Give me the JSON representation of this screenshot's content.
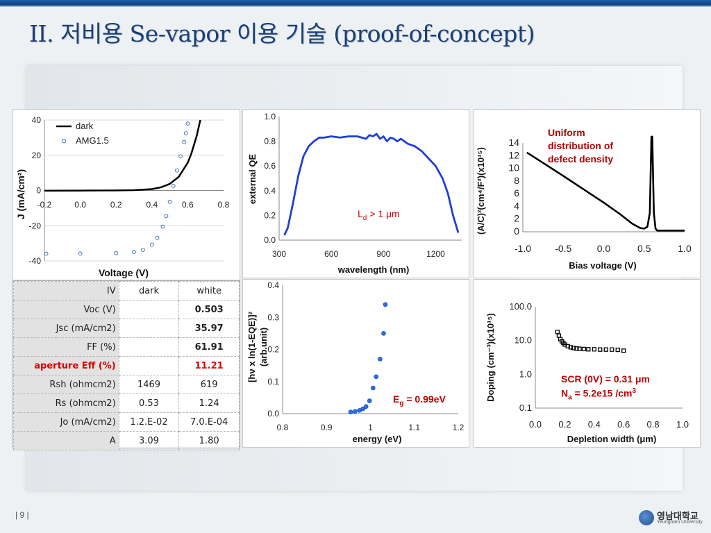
{
  "slide": {
    "title": "II. 저비용 Se-vapor 이용 기술 (proof-of-concept)",
    "page_number": "| 9 |",
    "logo_korean": "영남대학교",
    "logo_english": "Yeungnam University"
  },
  "chart_data": [
    {
      "id": "jv",
      "type": "line",
      "xlabel": "Voltage (V)",
      "ylabel": "J (mA/cm²)",
      "xlim": [
        -0.2,
        0.8
      ],
      "ylim": [
        -40,
        40
      ],
      "xticks": [
        "-0.2",
        "0.0",
        "0.2",
        "0.4",
        "0.6",
        "0.8"
      ],
      "yticks": [
        "40",
        "20",
        "0",
        "-20",
        "-40"
      ],
      "legend": "top-left",
      "series": [
        {
          "name": "dark",
          "style": "line",
          "color": "#000000",
          "x": [
            -0.2,
            0.0,
            0.2,
            0.3,
            0.4,
            0.45,
            0.5,
            0.55,
            0.6,
            0.62,
            0.65,
            0.67
          ],
          "y": [
            -0.1,
            -0.05,
            0.05,
            0.2,
            0.8,
            1.8,
            3.8,
            7.8,
            15.8,
            21,
            31,
            40
          ]
        },
        {
          "name": "AMG1.5",
          "style": "markers",
          "color": "#4a7fbd",
          "x": [
            -0.19,
            0.0,
            0.2,
            0.3,
            0.35,
            0.4,
            0.43,
            0.46,
            0.48,
            0.5,
            0.52,
            0.54,
            0.56,
            0.58,
            0.59,
            0.6
          ],
          "y": [
            -35.9,
            -35.8,
            -35.6,
            -34.9,
            -33.7,
            -30.7,
            -26.9,
            -20.5,
            -14.5,
            -6.4,
            2.6,
            11.4,
            19.4,
            27.5,
            32.5,
            38
          ]
        }
      ]
    },
    {
      "id": "eqe",
      "type": "line",
      "xlabel": "wavelength (nm)",
      "ylabel": "external QE",
      "xlim": [
        300,
        1350
      ],
      "ylim": [
        0,
        1.0
      ],
      "xticks": [
        "300",
        "600",
        "900",
        "1200"
      ],
      "yticks": [
        "1.0",
        "0.8",
        "0.6",
        "0.4",
        "0.2",
        "0.0"
      ],
      "annotation": {
        "main": "L",
        "sub": "d",
        "rest": " > 1 μm"
      },
      "series": [
        {
          "name": "",
          "color": "#1f3fd8",
          "x": [
            330,
            350,
            380,
            410,
            440,
            470,
            500,
            530,
            560,
            600,
            650,
            700,
            750,
            800,
            820,
            840,
            860,
            880,
            900,
            920,
            940,
            960,
            980,
            1000,
            1040,
            1080,
            1120,
            1160,
            1200,
            1240,
            1270,
            1300,
            1330
          ],
          "y": [
            0.04,
            0.1,
            0.3,
            0.52,
            0.68,
            0.76,
            0.8,
            0.83,
            0.83,
            0.84,
            0.83,
            0.84,
            0.84,
            0.82,
            0.85,
            0.84,
            0.86,
            0.82,
            0.84,
            0.8,
            0.83,
            0.82,
            0.8,
            0.82,
            0.78,
            0.76,
            0.72,
            0.66,
            0.6,
            0.5,
            0.38,
            0.2,
            0.06
          ]
        }
      ]
    },
    {
      "id": "cv",
      "type": "line",
      "xlabel": "Bias voltage (V)",
      "ylabel": "(A/C)²(cm⁴/F²)(x10¹⁵)",
      "xlim": [
        -1.0,
        1.0
      ],
      "ylim": [
        0,
        14
      ],
      "xticks": [
        "-1.0",
        "-0.5",
        "0.0",
        "0.5",
        "1.0"
      ],
      "yticks": [
        "14",
        "12",
        "10",
        "8",
        "6",
        "4",
        "2",
        "0"
      ],
      "annotation": "Uniform distribution of defect density",
      "series": [
        {
          "name": "",
          "color": "#000000",
          "x": [
            -0.95,
            -0.5,
            0.0,
            0.2,
            0.35,
            0.45,
            0.5,
            0.54,
            0.57,
            0.59,
            0.6,
            0.62,
            0.64,
            0.66,
            0.72,
            0.9,
            1.0
          ],
          "y": [
            12.5,
            8.8,
            4.6,
            2.8,
            1.3,
            0.6,
            0.5,
            0.8,
            3.0,
            15.0,
            15.0,
            3.0,
            0.5,
            0.2,
            0.2,
            0.2,
            0.2
          ]
        }
      ]
    },
    {
      "id": "tauc",
      "type": "scatter",
      "xlabel": "energy (eV)",
      "ylabel": "[hν x ln(1-EQE)]² (arb.unit)",
      "xlim": [
        0.8,
        1.2
      ],
      "ylim": [
        0.0,
        0.4
      ],
      "xticks": [
        "0.8",
        "0.9",
        "1",
        "1.1",
        "1.2"
      ],
      "yticks": [
        "0.4",
        "0.3",
        "0.2",
        "0.1",
        "0.0"
      ],
      "annotation": {
        "main": "E",
        "sub": "g",
        "rest": " = 0.99eV"
      },
      "series": [
        {
          "name": "",
          "color": "#2a6fe8",
          "x": [
            0.955,
            0.965,
            0.975,
            0.983,
            0.99,
            0.998,
            1.006,
            1.013,
            1.022,
            1.03
          ],
          "y": [
            0.005,
            0.007,
            0.01,
            0.015,
            0.022,
            0.04,
            0.08,
            0.115,
            0.17,
            0.25
          ]
        },
        {
          "name": "",
          "color": "#2a6fe8",
          "x": [
            1.034
          ],
          "y": [
            0.34
          ]
        }
      ]
    },
    {
      "id": "doping",
      "type": "scatter",
      "xlabel": "Depletion width (μm)",
      "ylabel": "Doping (cm⁻³)(x10¹⁵)",
      "xlim": [
        0.0,
        1.0
      ],
      "ylim": [
        0.1,
        100.0
      ],
      "yscale": "log",
      "xticks": [
        "0.0",
        "0.2",
        "0.4",
        "0.6",
        "0.8",
        "1.0"
      ],
      "yticks": [
        "100.0",
        "10.0",
        "1.0",
        "0.1"
      ],
      "annotation_lines": [
        "SCR (0V) = 0.31 μm"
      ],
      "annotation_na": {
        "main": "N",
        "sub": "a",
        "rest": " = 5.2e15 /cm",
        "sup": "3"
      },
      "series": [
        {
          "name": "",
          "color": "#000000",
          "x": [
            0.15,
            0.16,
            0.17,
            0.18,
            0.19,
            0.2,
            0.22,
            0.24,
            0.26,
            0.28,
            0.3,
            0.33,
            0.36,
            0.4,
            0.44,
            0.48,
            0.52,
            0.56,
            0.6
          ],
          "y": [
            18,
            14,
            11,
            9.5,
            8.5,
            7.6,
            6.8,
            6.3,
            6.0,
            5.8,
            5.7,
            5.6,
            5.5,
            5.5,
            5.4,
            5.4,
            5.4,
            5.3,
            5.0
          ]
        }
      ]
    }
  ],
  "iv_table": {
    "header": {
      "label": "IV",
      "dark": "dark",
      "white": "white"
    },
    "rows": [
      {
        "label": "Voc (V)",
        "dark": "",
        "white": "0.503"
      },
      {
        "label": "Jsc (mA/cm2)",
        "dark": "",
        "white": "35.97"
      },
      {
        "label": "FF (%)",
        "dark": "",
        "white": "61.91"
      },
      {
        "label": "aperture Eff (%)",
        "dark": "",
        "white": "11.21"
      },
      {
        "label": "Rsh (ohmcm2)",
        "dark": "1469",
        "white": "619"
      },
      {
        "label": "Rs (ohmcm2)",
        "dark": "0.53",
        "white": "1.24"
      },
      {
        "label": "Jo (mA/cm2)",
        "dark": "1.2.E-02",
        "white": "7.0.E-04"
      },
      {
        "label": "A",
        "dark": "3.09",
        "white": "1.80"
      }
    ]
  }
}
